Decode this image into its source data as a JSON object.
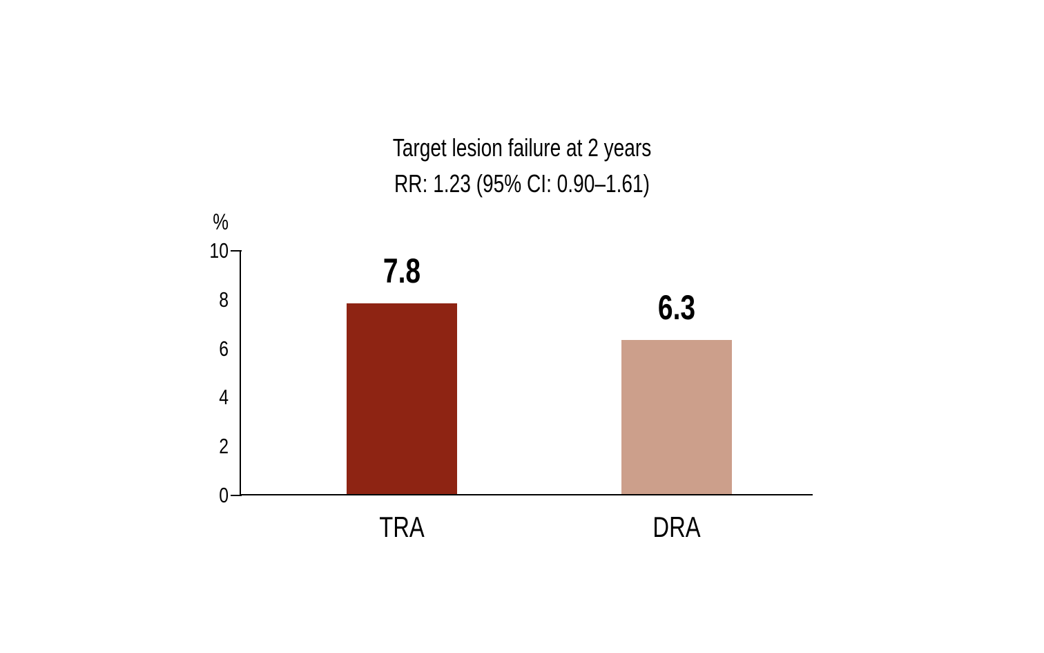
{
  "chart_data": {
    "type": "bar",
    "title": "Target lesion failure at 2 years",
    "subtitle": "RR: 1.23 (95% CI: 0.90–1.61)",
    "unit_label": "%",
    "categories": [
      "TRA",
      "DRA"
    ],
    "values": [
      7.8,
      6.3
    ],
    "value_labels": [
      "7.8",
      "6.3"
    ],
    "bar_colors": [
      "#8e2413",
      "#cc9f8b"
    ],
    "ylim": [
      0,
      10
    ],
    "yticks": [
      0,
      2,
      4,
      6,
      8,
      10
    ],
    "ytick_marks": [
      0,
      10
    ],
    "grid": false,
    "legend": "none"
  },
  "colors": {
    "axis": "#000000",
    "text": "#000000",
    "background": "#ffffff"
  }
}
